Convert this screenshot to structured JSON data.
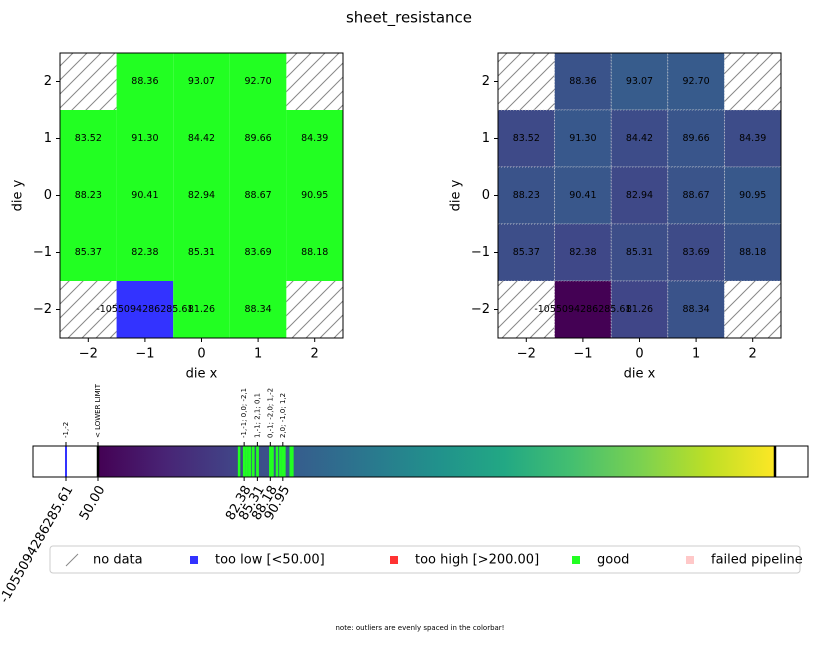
{
  "chart_data": [
    {
      "type": "heatmap",
      "title": "sheet_resistance",
      "xlabel": "die x",
      "ylabel": "die y",
      "x": [
        -2,
        -1,
        0,
        1,
        2
      ],
      "y": [
        2,
        1,
        0,
        -1,
        -2
      ],
      "xlim": [
        -2.5,
        2.5
      ],
      "ylim": [
        -2.5,
        2.5
      ],
      "xticks": [
        {
          "value": -2,
          "label": "−2"
        },
        {
          "value": -1,
          "label": "−1"
        },
        0,
        1,
        2
      ],
      "yticks": [
        {
          "value": -2,
          "label": "−2"
        },
        {
          "value": -1,
          "label": "−1"
        },
        0,
        1,
        2
      ],
      "values": [
        [
          null,
          88.36,
          93.07,
          92.7,
          null
        ],
        [
          83.52,
          91.3,
          84.42,
          89.66,
          84.39
        ],
        [
          88.23,
          90.41,
          82.94,
          88.67,
          90.95
        ],
        [
          85.37,
          82.38,
          85.31,
          83.69,
          88.18
        ],
        [
          null,
          -1055094286285.61,
          81.26,
          88.34,
          null
        ]
      ],
      "value_labels": [
        [
          null,
          "88.36",
          "93.07",
          "92.70",
          null
        ],
        [
          "83.52",
          "91.30",
          "84.42",
          "89.66",
          "84.39"
        ],
        [
          "88.23",
          "90.41",
          "82.94",
          "88.67",
          "90.95"
        ],
        [
          "85.37",
          "82.38",
          "85.31",
          "83.69",
          "88.18"
        ],
        [
          null,
          "-1055094286285.61",
          "81.26",
          "88.34",
          null
        ]
      ],
      "lower_limit": 50,
      "upper_limit": 200,
      "colors": {
        "good": "#22ff22",
        "low": "#3333ff",
        "high": "#ff3333"
      },
      "legend": [
        {
          "name": "no data"
        },
        {
          "name": "too low [<50.00]",
          "color": "#3333ff"
        },
        {
          "name": "too high [>200.00]",
          "color": "#ff3333"
        },
        {
          "name": "good",
          "color": "#22ff22"
        },
        {
          "name": "failed pipeline",
          "color": "#ffc8c8"
        }
      ]
    },
    {
      "type": "heatmap",
      "colormap": "viridis",
      "xlabel": "die x",
      "ylabel": "die y",
      "xticks": [
        {
          "value": -2,
          "label": "−2"
        },
        {
          "value": -1,
          "label": "−1"
        },
        0,
        1,
        2
      ],
      "yticks": [
        {
          "value": -2,
          "label": "−2"
        },
        {
          "value": -1,
          "label": "−1"
        },
        0,
        1,
        2
      ]
    },
    {
      "type": "colorbar",
      "clim": [
        50,
        200
      ],
      "ticks": [
        -1055094286285.61,
        {
          "value": 50,
          "label": "50.00"
        },
        82.38,
        85.31,
        88.18,
        90.95
      ],
      "annotations": [
        {
          "value": -1055094286285.61,
          "text": "-1,-2"
        },
        {
          "value": 50,
          "text": "< LOWER LIMIT"
        },
        {
          "value": 82.38,
          "text": "-1,-1; 0,0; -2,1"
        },
        {
          "value": 85.31,
          "text": "1,-1; 2,1; 0,1"
        },
        {
          "value": 88.18,
          "text": "0,-1; -2,0; 1,-2"
        },
        {
          "value": 90.95,
          "text": "2,0; -1,0; 1,2"
        }
      ],
      "note": "note: outliers are evenly spaced in the colorbar!"
    }
  ]
}
